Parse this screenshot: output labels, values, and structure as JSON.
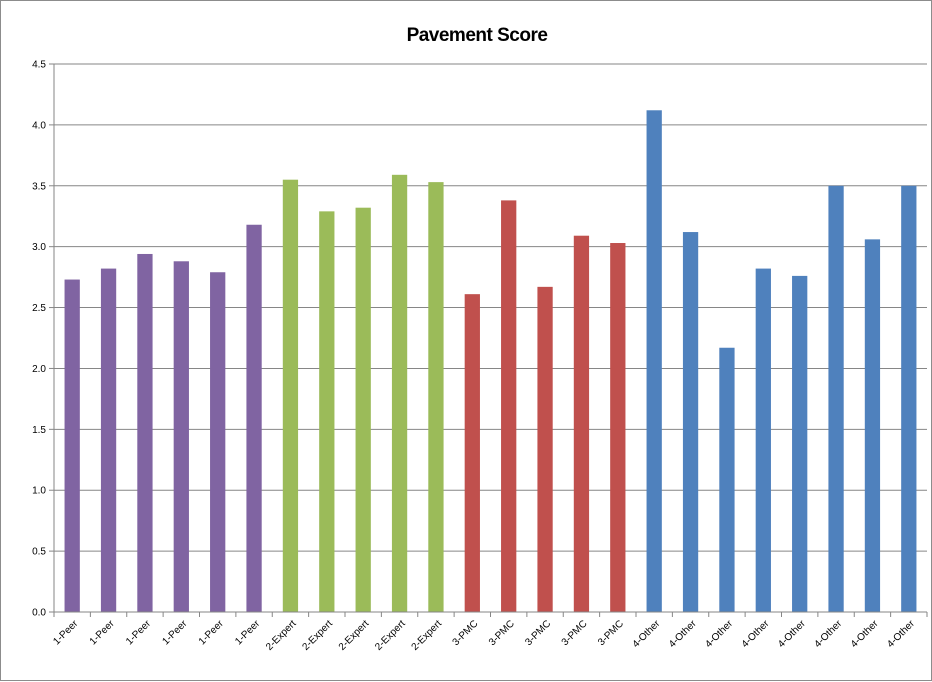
{
  "chart_data": {
    "type": "bar",
    "title": "Pavement Score",
    "xlabel": "",
    "ylabel": "",
    "ylim": [
      0,
      4.5
    ],
    "yticks": [
      "0.0",
      "0.5",
      "1.0",
      "1.5",
      "2.0",
      "2.5",
      "3.0",
      "3.5",
      "4.0",
      "4.5"
    ],
    "grid": true,
    "legend": "none",
    "categories": [
      "1-Peer",
      "1-Peer",
      "1-Peer",
      "1-Peer",
      "1-Peer",
      "1-Peer",
      "2-Expert",
      "2-Expert",
      "2-Expert",
      "2-Expert",
      "2-Expert",
      "3-PMC",
      "3-PMC",
      "3-PMC",
      "3-PMC",
      "3-PMC",
      "4-Other",
      "4-Other",
      "4-Other",
      "4-Other",
      "4-Other",
      "4-Other",
      "4-Other",
      "4-Other"
    ],
    "values": [
      2.73,
      2.82,
      2.94,
      2.88,
      2.79,
      3.18,
      3.55,
      3.29,
      3.32,
      3.59,
      3.53,
      2.61,
      3.38,
      2.67,
      3.09,
      3.03,
      4.12,
      3.12,
      2.17,
      2.82,
      2.76,
      3.5,
      3.06,
      3.5
    ],
    "group_colors": {
      "1-Peer": "#8064a2",
      "2-Expert": "#9bbb59",
      "3-PMC": "#c0504d",
      "4-Other": "#4f81bd"
    }
  }
}
